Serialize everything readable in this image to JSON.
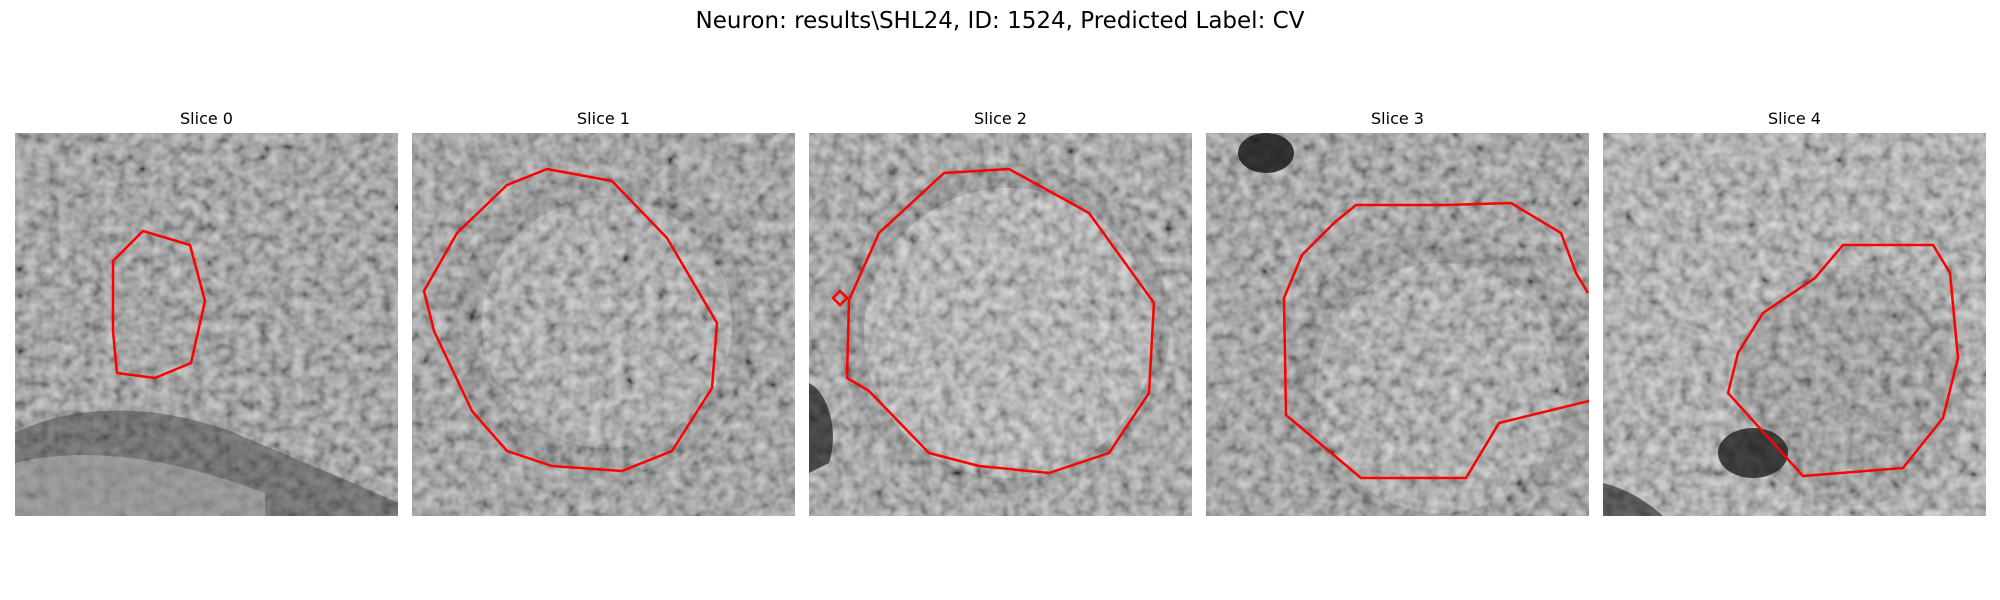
{
  "figure": {
    "title": "Neuron: results\\SHL24, ID: 1524, Predicted Label: CV",
    "contour_color": "#ff0000"
  },
  "slices": [
    {
      "title": "Slice 0"
    },
    {
      "title": "Slice 1"
    },
    {
      "title": "Slice 2"
    },
    {
      "title": "Slice 3"
    },
    {
      "title": "Slice 4"
    }
  ]
}
